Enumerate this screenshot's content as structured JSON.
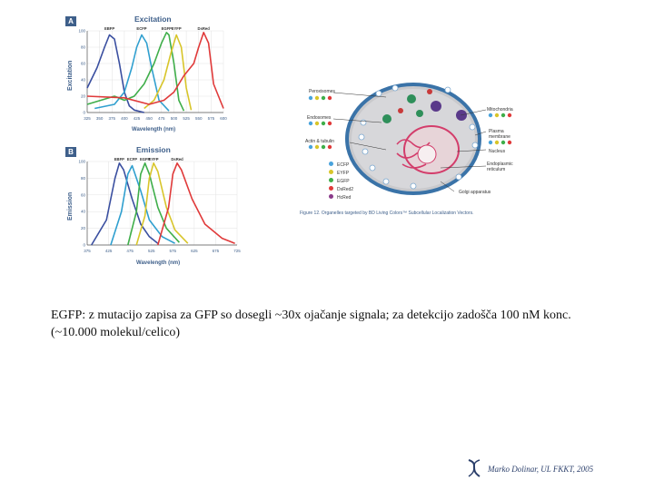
{
  "caption": {
    "text": "EGFP: z mutacijo zapisa za GFP so dosegli ~30x ojačanje signala; za detekcijo zadošča 100 nM konc. (~10.000 molekul/celico)"
  },
  "footer": {
    "text": "Marko Dolinar, UL FKKT, 2005"
  },
  "cell_figure": {
    "caption": "Figure 12. Organelles targeted by BD Living Colors™ Subcellular Localization Vectors.",
    "labels_left": [
      "Peroxisomes",
      "Endosomes",
      "Actin & tubulin"
    ],
    "labels_right": [
      "Mitochondria",
      "Plasma membrane",
      "Nucleus",
      "Endoplasmic reticulum",
      "Golgi apparatus"
    ],
    "legend": [
      {
        "label": "ECFP",
        "color": "#49a3dc"
      },
      {
        "label": "EYFP",
        "color": "#d8c52a"
      },
      {
        "label": "EGFP",
        "color": "#3fae4a"
      },
      {
        "label": "DsRed2",
        "color": "#e03a3a"
      },
      {
        "label": "HcRed",
        "color": "#8a3a8a"
      }
    ]
  },
  "chart_data": [
    {
      "type": "line",
      "panel": "A",
      "title": "Excitation",
      "xlabel": "Wavelength (nm)",
      "ylabel": "Excitation",
      "xlim": [
        325,
        600
      ],
      "ylim": [
        0,
        100
      ],
      "x_ticks": [
        325,
        350,
        375,
        400,
        425,
        450,
        475,
        500,
        525,
        550,
        575,
        600
      ],
      "y_ticks": [
        0,
        20,
        40,
        60,
        80,
        100
      ],
      "series": [
        {
          "name": "EBFP",
          "color": "#3a4fa0",
          "x": [
            325,
            345,
            360,
            370,
            380,
            390,
            400,
            410,
            420,
            440
          ],
          "y": [
            30,
            55,
            80,
            95,
            90,
            60,
            25,
            8,
            3,
            0
          ]
        },
        {
          "name": "ECFP",
          "color": "#2f9fcf",
          "x": [
            340,
            380,
            400,
            415,
            425,
            435,
            445,
            455,
            470,
            490
          ],
          "y": [
            5,
            10,
            25,
            55,
            80,
            95,
            85,
            55,
            15,
            2
          ]
        },
        {
          "name": "EGFP",
          "color": "#3fae4a",
          "x": [
            325,
            380,
            400,
            420,
            440,
            460,
            475,
            485,
            490,
            500,
            510,
            520
          ],
          "y": [
            10,
            20,
            15,
            20,
            35,
            60,
            85,
            98,
            95,
            60,
            15,
            2
          ]
        },
        {
          "name": "EYFP",
          "color": "#d8c52a",
          "x": [
            440,
            460,
            480,
            495,
            505,
            515,
            525,
            535
          ],
          "y": [
            5,
            15,
            40,
            75,
            95,
            80,
            30,
            3
          ]
        },
        {
          "name": "DsRed",
          "color": "#e03a3a",
          "x": [
            325,
            400,
            450,
            480,
            500,
            520,
            540,
            550,
            560,
            570,
            580,
            600
          ],
          "y": [
            20,
            18,
            10,
            15,
            25,
            45,
            60,
            80,
            98,
            85,
            35,
            5
          ]
        }
      ]
    },
    {
      "type": "line",
      "panel": "B",
      "title": "Emission",
      "xlabel": "Wavelength (nm)",
      "ylabel": "Emission",
      "xlim": [
        375,
        725
      ],
      "ylim": [
        0,
        100
      ],
      "x_ticks": [
        375,
        425,
        475,
        525,
        575,
        625,
        675,
        725
      ],
      "y_ticks": [
        0,
        20,
        40,
        60,
        80,
        100
      ],
      "series": [
        {
          "name": "EBFP",
          "color": "#3a4fa0",
          "x": [
            385,
            420,
            440,
            450,
            460,
            480,
            500,
            520,
            540
          ],
          "y": [
            0,
            30,
            80,
            98,
            90,
            55,
            25,
            10,
            2
          ]
        },
        {
          "name": "ECFP",
          "color": "#2f9fcf",
          "x": [
            430,
            455,
            470,
            480,
            490,
            500,
            520,
            550,
            580
          ],
          "y": [
            0,
            40,
            85,
            95,
            80,
            65,
            30,
            10,
            2
          ]
        },
        {
          "name": "EGFP",
          "color": "#3fae4a",
          "x": [
            470,
            490,
            500,
            510,
            520,
            540,
            560,
            590
          ],
          "y": [
            0,
            40,
            85,
            98,
            85,
            45,
            20,
            3
          ]
        },
        {
          "name": "EYFP",
          "color": "#d8c52a",
          "x": [
            490,
            510,
            520,
            530,
            540,
            560,
            580,
            610
          ],
          "y": [
            0,
            35,
            80,
            98,
            88,
            45,
            18,
            2
          ]
        },
        {
          "name": "DsRed",
          "color": "#e03a3a",
          "x": [
            540,
            565,
            575,
            585,
            595,
            620,
            650,
            690,
            720
          ],
          "y": [
            0,
            45,
            85,
            98,
            90,
            55,
            25,
            8,
            2
          ]
        }
      ]
    }
  ]
}
